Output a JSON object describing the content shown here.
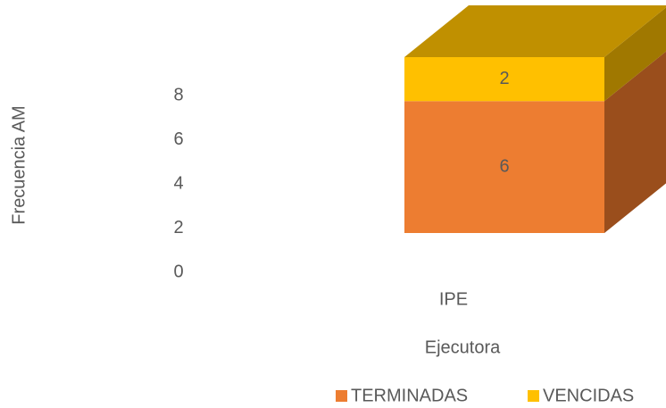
{
  "chart_data": {
    "type": "bar3d_stacked",
    "x_label": "Ejecutora",
    "y_label": "Frecuencia AM",
    "categories": [
      "IPE"
    ],
    "series": [
      {
        "name": "TERMINADAS",
        "color": "#ED7D31",
        "side": "#9A4E1C",
        "values": [
          6
        ]
      },
      {
        "name": "VENCIDAS",
        "color": "#FFC000",
        "side": "#A07800",
        "top": "#C09000",
        "values": [
          2
        ]
      }
    ],
    "ylim": [
      0,
      8
    ],
    "yticks": [
      0,
      2,
      4,
      6,
      8
    ],
    "legend": "bottom"
  }
}
